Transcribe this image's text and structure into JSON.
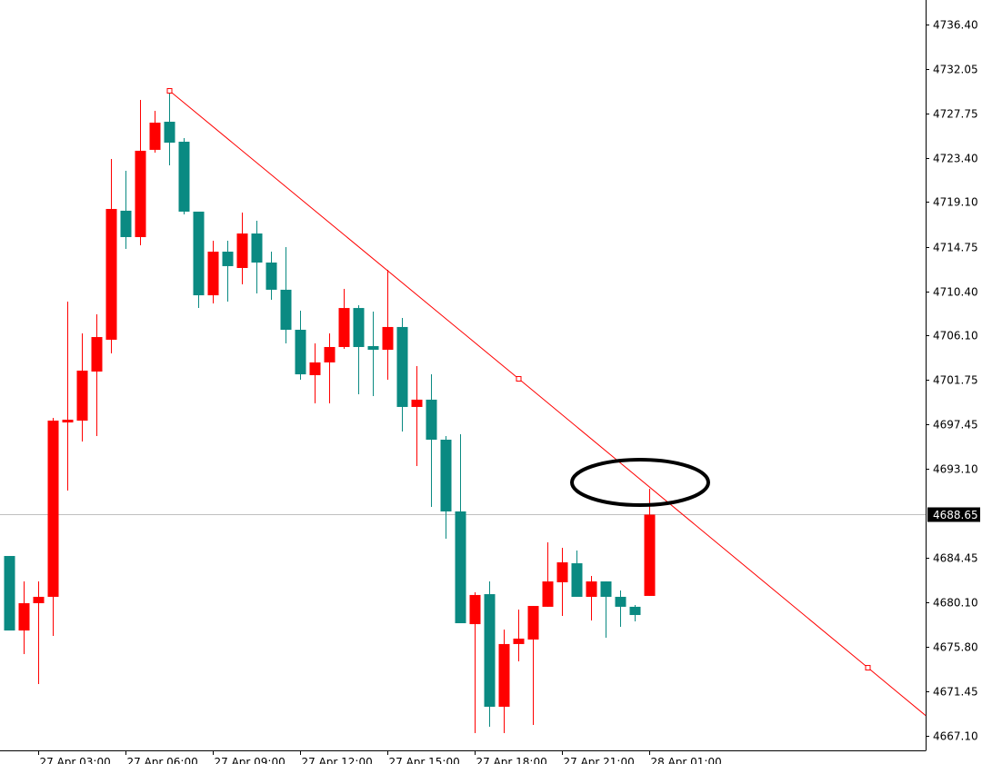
{
  "chart_data": {
    "type": "candlestick",
    "categories": [
      null,
      null,
      "27 Apr 03:00",
      null,
      null,
      null,
      null,
      null,
      "27 Apr 06:00",
      null,
      null,
      null,
      null,
      null,
      "27 Apr 09:00",
      null,
      null,
      null,
      null,
      null,
      "27 Apr 12:00",
      null,
      null,
      null,
      null,
      null,
      "27 Apr 15:00",
      null,
      null,
      null,
      null,
      null,
      "27 Apr 18:00",
      null,
      null,
      null,
      null,
      null,
      "27 Apr 21:00",
      null,
      null,
      null,
      null,
      null,
      "28 Apr 01:00"
    ],
    "open": [
      4684.62,
      4677.36,
      4680.02,
      4680.64,
      4697.63,
      4697.81,
      4702.59,
      4705.69,
      4718.26,
      4715.69,
      4724.19,
      4726.93,
      4724.98,
      4718.17,
      4710.02,
      4714.27,
      4712.68,
      4716.04,
      4713.21,
      4710.56,
      4706.66,
      4702.24,
      4703.48,
      4704.98,
      4708.78,
      4705.07,
      4704.71,
      4706.93,
      4699.14,
      4699.85,
      4695.95,
      4688.96,
      4677.98,
      4680.9,
      4669.93,
      4676.04,
      4676.48,
      4679.67,
      4682.06,
      4683.91,
      4680.64,
      4682.14,
      4680.64,
      4679.67,
      4680.73
    ],
    "high": [
      4684.62,
      4682.14,
      4682.14,
      4698.08,
      4709.4,
      4706.31,
      4708.17,
      4723.3,
      4722.15,
      4729.05,
      4727.99,
      4730.03,
      4725.34,
      4718.17,
      4715.33,
      4715.33,
      4718.08,
      4717.28,
      4714.27,
      4714.72,
      4708.52,
      4705.33,
      4706.31,
      4710.64,
      4709.05,
      4708.43,
      4712.5,
      4707.81,
      4703.12,
      4702.32,
      4696.31,
      4696.48,
      4681.08,
      4682.14,
      4677.45,
      4679.4,
      4679.75,
      4685.95,
      4685.42,
      4685.15,
      4682.67,
      4682.14,
      4681.26,
      4679.84,
      4691.17
    ],
    "low": [
      4677.36,
      4675.06,
      4672.14,
      4676.83,
      4690.99,
      4695.77,
      4696.31,
      4704.36,
      4714.54,
      4714.89,
      4723.92,
      4722.68,
      4717.9,
      4708.78,
      4709.23,
      4709.4,
      4711.09,
      4710.2,
      4709.58,
      4705.33,
      4701.79,
      4699.49,
      4699.49,
      4704.8,
      4700.38,
      4700.2,
      4701.79,
      4696.75,
      4693.38,
      4689.4,
      4686.3,
      4678.07,
      4667.36,
      4667.98,
      4667.36,
      4674.35,
      4668.16,
      4679.67,
      4678.78,
      4680.64,
      4678.34,
      4676.66,
      4677.72,
      4678.25,
      4680.73
    ],
    "close": [
      4677.36,
      4680.02,
      4680.64,
      4697.81,
      4697.9,
      4702.68,
      4705.95,
      4718.43,
      4715.69,
      4724.1,
      4726.84,
      4724.89,
      4718.17,
      4710.02,
      4714.27,
      4712.86,
      4716.04,
      4713.21,
      4710.56,
      4706.66,
      4702.32,
      4703.48,
      4704.98,
      4708.78,
      4704.98,
      4704.71,
      4706.93,
      4699.14,
      4699.85,
      4695.95,
      4688.96,
      4678.07,
      4680.82,
      4669.93,
      4676.04,
      4676.57,
      4679.75,
      4682.14,
      4684.0,
      4680.64,
      4682.14,
      4680.64,
      4679.67,
      4678.87,
      4688.65
    ],
    "up_color": "#ff0000",
    "down_color": "#0a8a82",
    "ylim": [
      4665.68,
      4738.79
    ],
    "yticks": [
      {
        "value": 4736.4,
        "label": "4736.40"
      },
      4732.05,
      4727.75,
      {
        "value": 4723.4,
        "label": "4723.40"
      },
      {
        "value": 4719.1,
        "label": "4719.10"
      },
      4714.75,
      {
        "value": 4710.4,
        "label": "4710.40"
      },
      {
        "value": 4706.1,
        "label": "4706.10"
      },
      4701.75,
      4697.45,
      {
        "value": 4693.1,
        "label": "4693.10"
      },
      4684.45,
      {
        "value": 4680.1,
        "label": "4680.10"
      },
      {
        "value": 4675.8,
        "label": "4675.80"
      },
      4671.45,
      {
        "value": 4667.1,
        "label": "4667.10"
      }
    ],
    "current_price": 4688.65,
    "trendline": {
      "x": [
        11,
        35,
        59
      ],
      "y": [
        4729.94,
        4701.88,
        4673.73
      ],
      "color": "#ff0000"
    }
  }
}
